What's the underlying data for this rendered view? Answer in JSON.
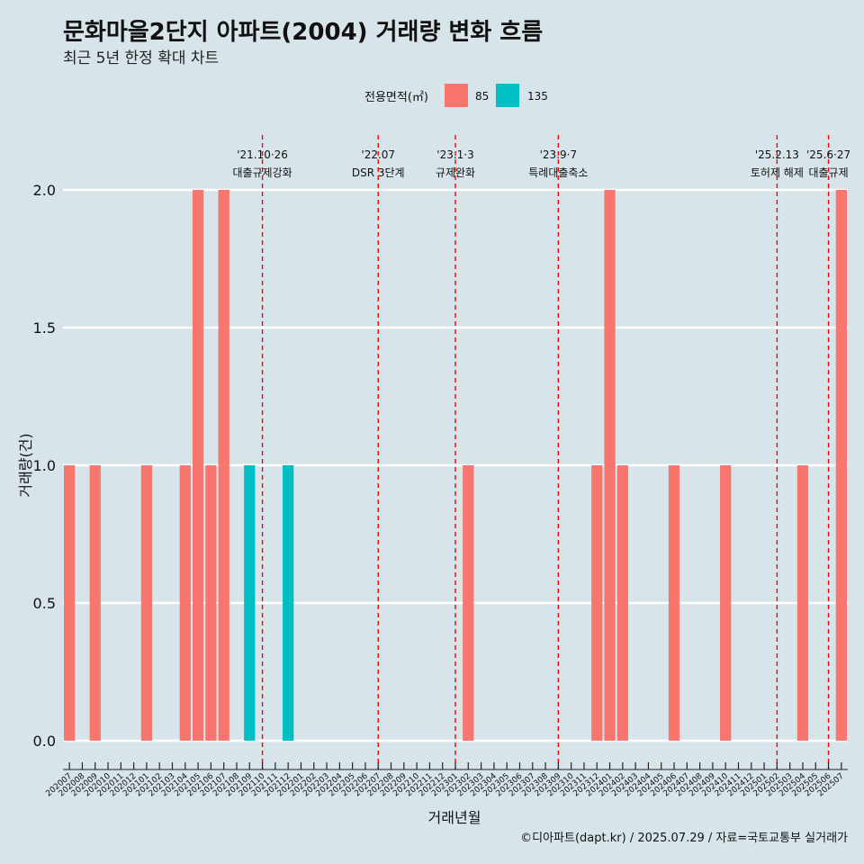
{
  "chart_data": {
    "type": "bar",
    "title": "문화마을2단지 아파트(2004) 거래량 변화 흐름",
    "subtitle": "최근 5년 한정 확대 차트",
    "xlabel": "거래년월",
    "ylabel": "거래량(건)",
    "ylim": [
      0,
      2
    ],
    "yticks": [
      "0.0",
      "0.5",
      "1.0",
      "1.5",
      "2.0"
    ],
    "grid": "horizontal",
    "legend": {
      "title": "전용면적(㎡)",
      "position": "top",
      "items": [
        "85",
        "135"
      ]
    },
    "categories": [
      "202007",
      "202008",
      "202009",
      "202010",
      "202011",
      "202012",
      "202101",
      "202102",
      "202103",
      "202104",
      "202105",
      "202106",
      "202107",
      "202108",
      "202109",
      "202110",
      "202111",
      "202112",
      "202201",
      "202202",
      "202203",
      "202204",
      "202205",
      "202206",
      "202207",
      "202208",
      "202209",
      "202210",
      "202211",
      "202212",
      "202301",
      "202302",
      "202303",
      "202304",
      "202305",
      "202306",
      "202307",
      "202308",
      "202309",
      "202310",
      "202311",
      "202312",
      "202401",
      "202402",
      "202403",
      "202404",
      "202405",
      "202406",
      "202407",
      "202408",
      "202409",
      "202410",
      "202411",
      "202412",
      "202501",
      "202502",
      "202503",
      "202504",
      "202505",
      "202506",
      "202507"
    ],
    "series": [
      {
        "name": "85",
        "color": "#f8766d",
        "values": [
          1,
          0,
          1,
          0,
          0,
          0,
          1,
          0,
          0,
          1,
          2,
          1,
          2,
          0,
          0,
          0,
          0,
          0,
          0,
          0,
          0,
          0,
          0,
          0,
          0,
          0,
          0,
          0,
          0,
          0,
          0,
          1,
          0,
          0,
          0,
          0,
          0,
          0,
          0,
          0,
          0,
          1,
          2,
          1,
          0,
          0,
          0,
          1,
          0,
          0,
          0,
          1,
          0,
          0,
          0,
          0,
          0,
          1,
          0,
          0,
          2
        ]
      },
      {
        "name": "135",
        "color": "#00bfc4",
        "values": [
          0,
          0,
          0,
          0,
          0,
          0,
          0,
          0,
          0,
          0,
          0,
          0,
          0,
          0,
          1,
          0,
          0,
          1,
          0,
          0,
          0,
          0,
          0,
          0,
          0,
          0,
          0,
          0,
          0,
          0,
          0,
          0,
          0,
          0,
          0,
          0,
          0,
          0,
          0,
          0,
          0,
          0,
          0,
          0,
          0,
          0,
          0,
          0,
          0,
          0,
          0,
          0,
          0,
          0,
          0,
          0,
          0,
          0,
          0,
          0,
          0
        ]
      }
    ],
    "events": [
      {
        "x": "202110",
        "line1": "'21.10·26",
        "line2": "대출규제강화"
      },
      {
        "x": "202207",
        "line1": "'22.07",
        "line2": "DSR 3단계"
      },
      {
        "x": "202301",
        "line1": "'23.1·3",
        "line2": "규제완화"
      },
      {
        "x": "202309",
        "line1": "'23.9·7",
        "line2": "특례대출축소"
      },
      {
        "x": "202502",
        "line1": "'25.2.13",
        "line2": "토허제 해제"
      },
      {
        "x": "202506",
        "line1": "'25.6·27",
        "line2": "대출규제"
      }
    ],
    "caption": "©디아파트(dapt.kr) / 2025.07.29 / 자료=국토교통부 실거래가"
  }
}
